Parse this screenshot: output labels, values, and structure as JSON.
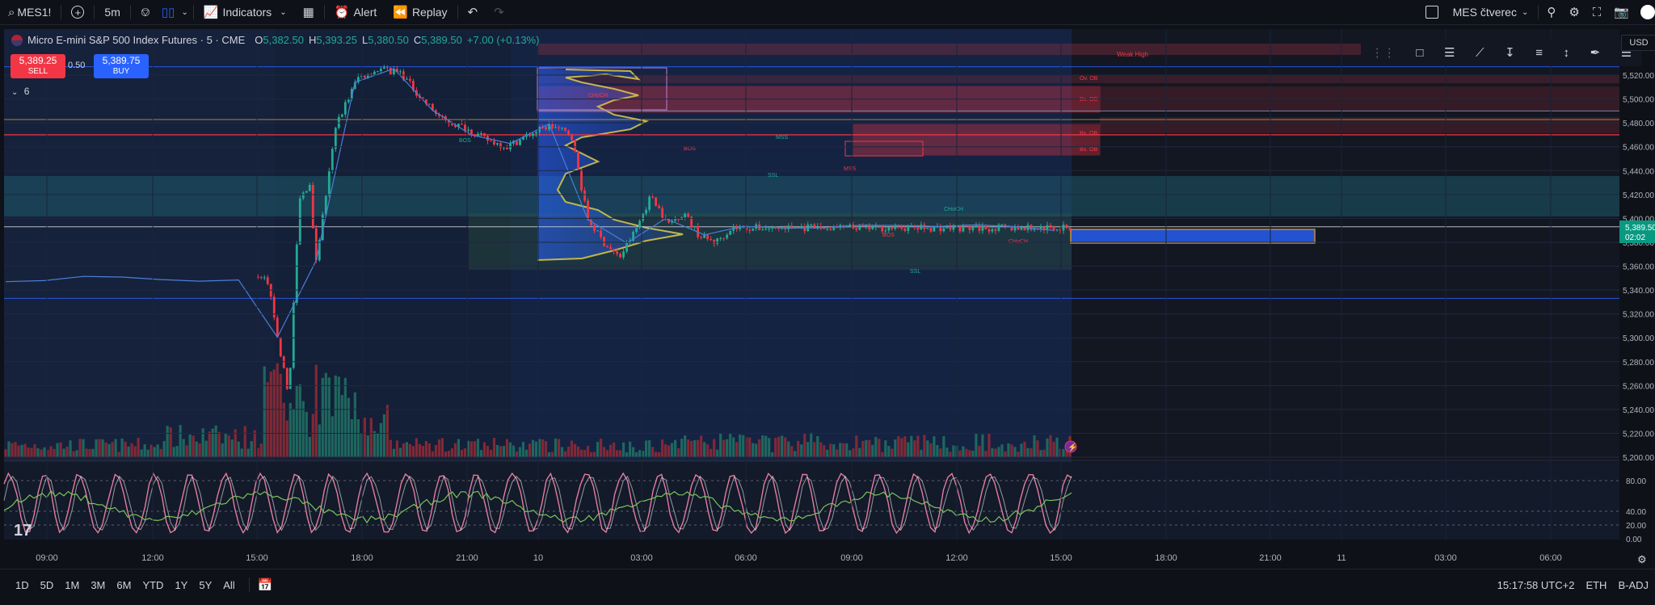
{
  "topbar": {
    "symbol": "MES1!",
    "interval": "5m",
    "indicators_label": "Indicators",
    "alert_label": "Alert",
    "replay_label": "Replay",
    "layout_name": "MES čtverec"
  },
  "legend": {
    "title": "Micro E-mini S&P 500 Index Futures · 5 · CME",
    "open_key": "O",
    "open": "5,382.50",
    "high_key": "H",
    "high": "5,393.25",
    "low_key": "L",
    "low": "5,380.50",
    "close_key": "C",
    "close": "5,389.50",
    "change": "+7.00 (+0.13%)"
  },
  "trade": {
    "sell_price": "5,389.25",
    "sell_label": "SELL",
    "spread": "0.50",
    "buy_price": "5,389.75",
    "buy_label": "BUY",
    "collapsed_count": "6"
  },
  "currency": "USD",
  "price_axis": {
    "ticks": [
      "5,520.00",
      "5,500.00",
      "5,480.00",
      "5,460.00",
      "5,440.00",
      "5,420.00",
      "5,400.00",
      "5,380.00",
      "5,360.00",
      "5,340.00",
      "5,320.00",
      "5,300.00",
      "5,280.00",
      "5,260.00",
      "5,240.00",
      "5,220.00",
      "5,200.00"
    ],
    "last_price": "5,389.50",
    "countdown": "02:02"
  },
  "oscillator_axis": {
    "ticks": [
      "80.00",
      "40.00",
      "20.00",
      "0.00"
    ]
  },
  "time_axis": {
    "ticks": [
      "09:00",
      "12:00",
      "15:00",
      "18:00",
      "21:00",
      "10",
      "03:00",
      "06:00",
      "09:00",
      "12:00",
      "15:00",
      "18:00",
      "21:00",
      "11",
      "03:00",
      "06:00"
    ]
  },
  "chart_labels": {
    "weak_high": "Weak High",
    "zone_labels": [
      "Ov. OB",
      "Bx. OB",
      "Bx. OB",
      "Bx. OB"
    ],
    "bos": [
      "BOS",
      "BOS",
      "BOS"
    ],
    "choch": [
      "CHoCH",
      "CHoCH",
      "CHoCH"
    ],
    "mss": [
      "MSS",
      "MSS"
    ],
    "ssl": [
      "SSL",
      "SSL"
    ]
  },
  "bottombar": {
    "ranges": [
      "1D",
      "5D",
      "1M",
      "3M",
      "6M",
      "YTD",
      "1Y",
      "5Y",
      "All"
    ],
    "clock": "15:17:58 UTC+2",
    "session": "ETH",
    "adjust": "B-ADJ"
  },
  "logo_text": "17",
  "colors": {
    "up": "#22ab94",
    "down": "#f23645",
    "blue_line": "#2962ff",
    "bg": "#0e1118"
  },
  "chart_data": {
    "type": "candlestick",
    "symbol": "MES1!",
    "interval": "5",
    "ylim": [
      5190,
      5535
    ],
    "y_ticks": [
      5520,
      5500,
      5480,
      5460,
      5440,
      5420,
      5400,
      5380,
      5360,
      5340,
      5320,
      5300,
      5280,
      5260,
      5240,
      5220,
      5200
    ],
    "x_ticks": [
      "09:00",
      "12:00",
      "15:00",
      "18:00",
      "21:00",
      "10",
      "03:00",
      "06:00",
      "09:00",
      "12:00",
      "15:00",
      "18:00",
      "21:00",
      "11",
      "03:00",
      "06:00"
    ],
    "price_path": [
      [
        0.0,
        5350
      ],
      [
        0.04,
        5345
      ],
      [
        0.08,
        5350
      ],
      [
        0.12,
        5348
      ],
      [
        0.16,
        5352
      ],
      [
        0.2,
        5349
      ],
      [
        0.245,
        5350
      ],
      [
        0.255,
        5300
      ],
      [
        0.265,
        5250
      ],
      [
        0.275,
        5415
      ],
      [
        0.285,
        5430
      ],
      [
        0.29,
        5360
      ],
      [
        0.3,
        5420
      ],
      [
        0.31,
        5480
      ],
      [
        0.33,
        5518
      ],
      [
        0.35,
        5525
      ],
      [
        0.37,
        5522
      ],
      [
        0.39,
        5500
      ],
      [
        0.41,
        5482
      ],
      [
        0.43,
        5476
      ],
      [
        0.45,
        5466
      ],
      [
        0.47,
        5460
      ],
      [
        0.49,
        5470
      ],
      [
        0.51,
        5478
      ],
      [
        0.53,
        5470
      ],
      [
        0.545,
        5400
      ],
      [
        0.56,
        5380
      ],
      [
        0.575,
        5367
      ],
      [
        0.59,
        5390
      ],
      [
        0.605,
        5420
      ],
      [
        0.62,
        5395
      ],
      [
        0.635,
        5405
      ],
      [
        0.65,
        5385
      ],
      [
        0.665,
        5380
      ],
      [
        0.68,
        5392
      ]
    ],
    "oscillator": {
      "ticks": [
        80,
        40,
        20,
        0
      ],
      "ylim": [
        0,
        100
      ]
    },
    "last_price": 5389.5,
    "lines": [
      5527,
      5520,
      5490,
      5470,
      5393,
      5333
    ]
  }
}
